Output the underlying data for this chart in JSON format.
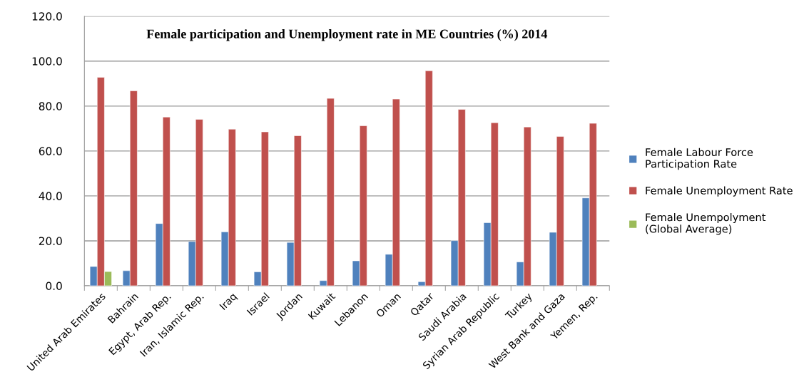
{
  "chart_data": {
    "type": "bar",
    "title": "Female participation and Unemployment rate in ME Countries (%) 2014",
    "categories": [
      "United Arab Emirates",
      "Bahrain",
      "Egypt, Arab Rep.",
      "Iran, Islamic Rep.",
      "Iraq",
      "Israel",
      "Jordan",
      "Kuwait",
      "Lebanon",
      "Oman",
      "Qatar",
      "Saudi Arabia",
      "Syrian Arab Republic",
      "Turkey",
      "West Bank and Gaza",
      "Yemen, Rep."
    ],
    "series": [
      {
        "name": "Female Labour Force Participation Rate",
        "color": "#4f81bd",
        "values": [
          8.6,
          6.7,
          27.7,
          19.7,
          24.0,
          6.2,
          19.3,
          2.3,
          11.1,
          14.0,
          1.8,
          20.1,
          28.1,
          10.6,
          23.8,
          39.1
        ]
      },
      {
        "name": "Female Unemployment Rate",
        "color": "#c0504d",
        "values": [
          92.8,
          86.8,
          75.1,
          74.1,
          69.7,
          68.5,
          66.8,
          83.4,
          71.2,
          83.1,
          95.7,
          78.5,
          72.6,
          70.7,
          66.5,
          72.3
        ]
      },
      {
        "name": "Female Unempolyment (Global Average)",
        "color": "#9bbb59",
        "values": [
          6.3,
          null,
          null,
          null,
          null,
          null,
          null,
          null,
          null,
          null,
          null,
          null,
          null,
          null,
          null,
          null
        ]
      }
    ],
    "ylim": [
      0,
      120
    ],
    "yticks": [
      {
        "value": 0,
        "label": "0.0"
      },
      {
        "value": 20,
        "label": "20.0"
      },
      {
        "value": 40,
        "label": "40.0"
      },
      {
        "value": 60,
        "label": "60.0"
      },
      {
        "value": 80,
        "label": "80.0"
      },
      {
        "value": 100,
        "label": "100.0"
      },
      {
        "value": 120,
        "label": "120.0"
      }
    ],
    "grid": "y",
    "legend": "right"
  }
}
